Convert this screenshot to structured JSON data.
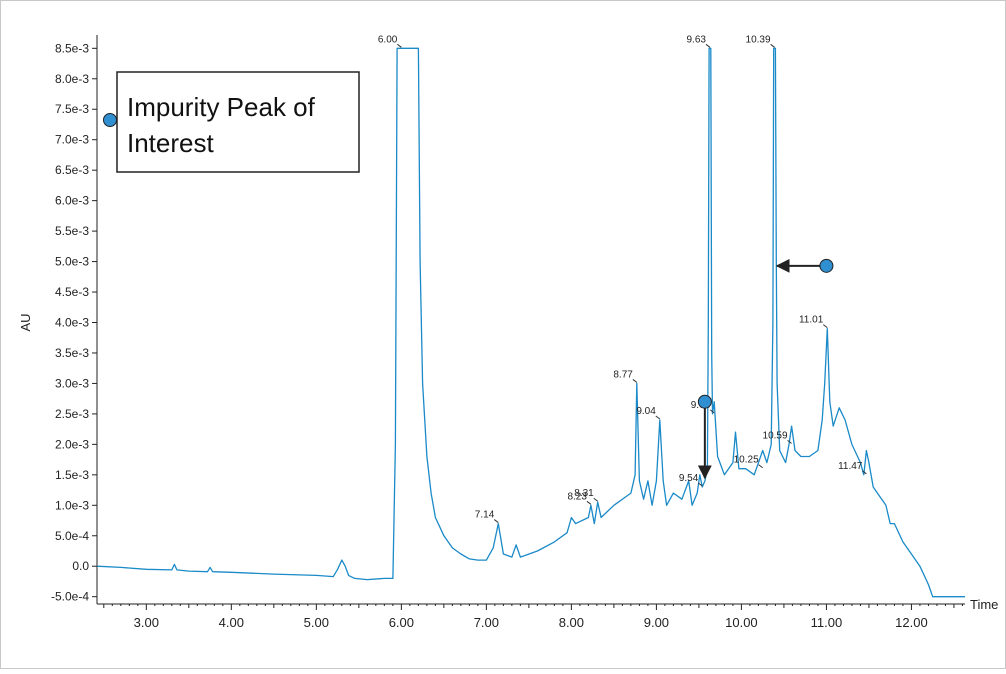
{
  "chart_data": {
    "type": "line",
    "xlabel": "Time",
    "ylabel": "AU",
    "xlim": [
      2.42,
      12.63
    ],
    "ylim": [
      -0.00062,
      0.00862
    ],
    "x_ticks": [
      3.0,
      4.0,
      5.0,
      6.0,
      7.0,
      8.0,
      9.0,
      10.0,
      11.0,
      12.0
    ],
    "x_tick_labels": [
      "3.00",
      "4.00",
      "5.00",
      "6.00",
      "7.00",
      "8.00",
      "9.00",
      "10.00",
      "11.00",
      "12.00"
    ],
    "y_ticks": [
      -0.0005,
      0.0,
      0.0005,
      0.001,
      0.0015,
      0.002,
      0.0025,
      0.003,
      0.0035,
      0.004,
      0.0045,
      0.005,
      0.0055,
      0.006,
      0.0065,
      0.007,
      0.0075,
      0.008,
      0.0085
    ],
    "y_tick_labels": [
      "-5.0e-4",
      "0.0",
      "5.0e-4",
      "1.0e-3",
      "1.5e-3",
      "2.0e-3",
      "2.5e-3",
      "3.0e-3",
      "3.5e-3",
      "4.0e-3",
      "4.5e-3",
      "5.0e-3",
      "5.5e-3",
      "6.0e-3",
      "6.5e-3",
      "7.0e-3",
      "7.5e-3",
      "8.0e-3",
      "8.5e-3"
    ],
    "grid": false,
    "line_color": "#1a8ac8",
    "series": [
      {
        "x": [
          2.42,
          2.7,
          3.0,
          3.3,
          3.33,
          3.36,
          3.5,
          3.72,
          3.75,
          3.78,
          4.0,
          4.5,
          5.0,
          5.2,
          5.25,
          5.3,
          5.34,
          5.38,
          5.45,
          5.6,
          5.8,
          5.9,
          5.93,
          5.95,
          6.0,
          6.2,
          6.22,
          6.25,
          6.3,
          6.35,
          6.4,
          6.5,
          6.6,
          6.7,
          6.8,
          6.9,
          7.0,
          7.08,
          7.14,
          7.2,
          7.3,
          7.35,
          7.4,
          7.6,
          7.8,
          7.95,
          8.0,
          8.05,
          8.2,
          8.23,
          8.27,
          8.31,
          8.35,
          8.5,
          8.7,
          8.75,
          8.77,
          8.8,
          8.85,
          8.9,
          8.95,
          9.0,
          9.04,
          9.08,
          9.12,
          9.2,
          9.3,
          9.38,
          9.42,
          9.48,
          9.51,
          9.54,
          9.57,
          9.6,
          9.61,
          9.62,
          9.63,
          9.64,
          9.65,
          9.66,
          9.68,
          9.72,
          9.8,
          9.9,
          9.93,
          9.97,
          10.05,
          10.15,
          10.25,
          10.3,
          10.35,
          10.37,
          10.38,
          10.39,
          10.4,
          10.41,
          10.42,
          10.45,
          10.52,
          10.56,
          10.59,
          10.63,
          10.7,
          10.8,
          10.9,
          10.95,
          10.98,
          11.01,
          11.04,
          11.08,
          11.15,
          11.22,
          11.3,
          11.4,
          11.44,
          11.47,
          11.5,
          11.55,
          11.6,
          11.7,
          11.75,
          11.8,
          11.9,
          12.0,
          12.1,
          12.2,
          12.25,
          12.4,
          12.63
        ],
        "y": [
          0.0,
          -2e-05,
          -5e-05,
          -6e-05,
          3e-05,
          -6e-05,
          -8e-05,
          -9e-05,
          -2e-05,
          -9e-05,
          -0.0001,
          -0.00013,
          -0.00015,
          -0.00017,
          -5e-05,
          0.0001,
          0.0,
          -0.00015,
          -0.0002,
          -0.00022,
          -0.0002,
          -0.0002,
          0.002,
          0.0085,
          0.0085,
          0.0085,
          0.005,
          0.003,
          0.0018,
          0.0012,
          0.0008,
          0.0005,
          0.0003,
          0.0002,
          0.00012,
          0.0001,
          0.0001,
          0.0003,
          0.0007,
          0.0002,
          0.00015,
          0.00035,
          0.00015,
          0.00025,
          0.0004,
          0.00055,
          0.0008,
          0.0007,
          0.0008,
          0.001,
          0.0007,
          0.00105,
          0.0008,
          0.001,
          0.0012,
          0.0015,
          0.003,
          0.0014,
          0.0011,
          0.0014,
          0.001,
          0.0014,
          0.0024,
          0.0014,
          0.001,
          0.0012,
          0.0011,
          0.0014,
          0.001,
          0.0012,
          0.0015,
          0.0013,
          0.0014,
          0.0016,
          0.004,
          0.0085,
          0.0085,
          0.0085,
          0.0035,
          0.0025,
          0.0027,
          0.0018,
          0.0015,
          0.0017,
          0.0022,
          0.0016,
          0.0016,
          0.0015,
          0.0019,
          0.0017,
          0.002,
          0.004,
          0.0085,
          0.0085,
          0.0085,
          0.005,
          0.003,
          0.0019,
          0.0017,
          0.002,
          0.0023,
          0.0019,
          0.0018,
          0.0018,
          0.0019,
          0.0024,
          0.003,
          0.0039,
          0.0027,
          0.0023,
          0.0026,
          0.0024,
          0.002,
          0.0017,
          0.0015,
          0.0019,
          0.0017,
          0.0013,
          0.0012,
          0.001,
          0.0007,
          0.0007,
          0.0004,
          0.0002,
          0.0,
          -0.0003,
          -0.0005,
          -0.0005,
          -0.0005
        ]
      }
    ],
    "peak_labels": [
      {
        "text": "6.00",
        "x": 6.0,
        "y": 0.0085
      },
      {
        "text": "7.14",
        "x": 7.14,
        "y": 0.0007
      },
      {
        "text": "8.23",
        "x": 8.23,
        "y": 0.001
      },
      {
        "text": "8.31",
        "x": 8.31,
        "y": 0.00105
      },
      {
        "text": "8.77",
        "x": 8.77,
        "y": 0.003
      },
      {
        "text": "9.04",
        "x": 9.04,
        "y": 0.0024
      },
      {
        "text": "9.54",
        "x": 9.54,
        "y": 0.0013
      },
      {
        "text": "9.63",
        "x": 9.63,
        "y": 0.0085
      },
      {
        "text": "9.68",
        "x": 9.68,
        "y": 0.0025
      },
      {
        "text": "10.25",
        "x": 10.25,
        "y": 0.0016
      },
      {
        "text": "10.39",
        "x": 10.39,
        "y": 0.0085
      },
      {
        "text": "10.59",
        "x": 10.59,
        "y": 0.002
      },
      {
        "text": "11.01",
        "x": 11.01,
        "y": 0.0039
      },
      {
        "text": "11.47",
        "x": 11.47,
        "y": 0.0015
      }
    ],
    "legend": {
      "text_line1": "Impurity Peak of",
      "text_line2": "Interest",
      "marker_color": "#2f8fd0"
    },
    "annotations": [
      {
        "type": "arrow",
        "from": [
          9.57,
          0.0027
        ],
        "to": [
          9.57,
          0.00145
        ]
      },
      {
        "type": "arrow",
        "from": [
          11.0,
          0.00493
        ],
        "to": [
          10.42,
          0.00493
        ]
      }
    ]
  }
}
